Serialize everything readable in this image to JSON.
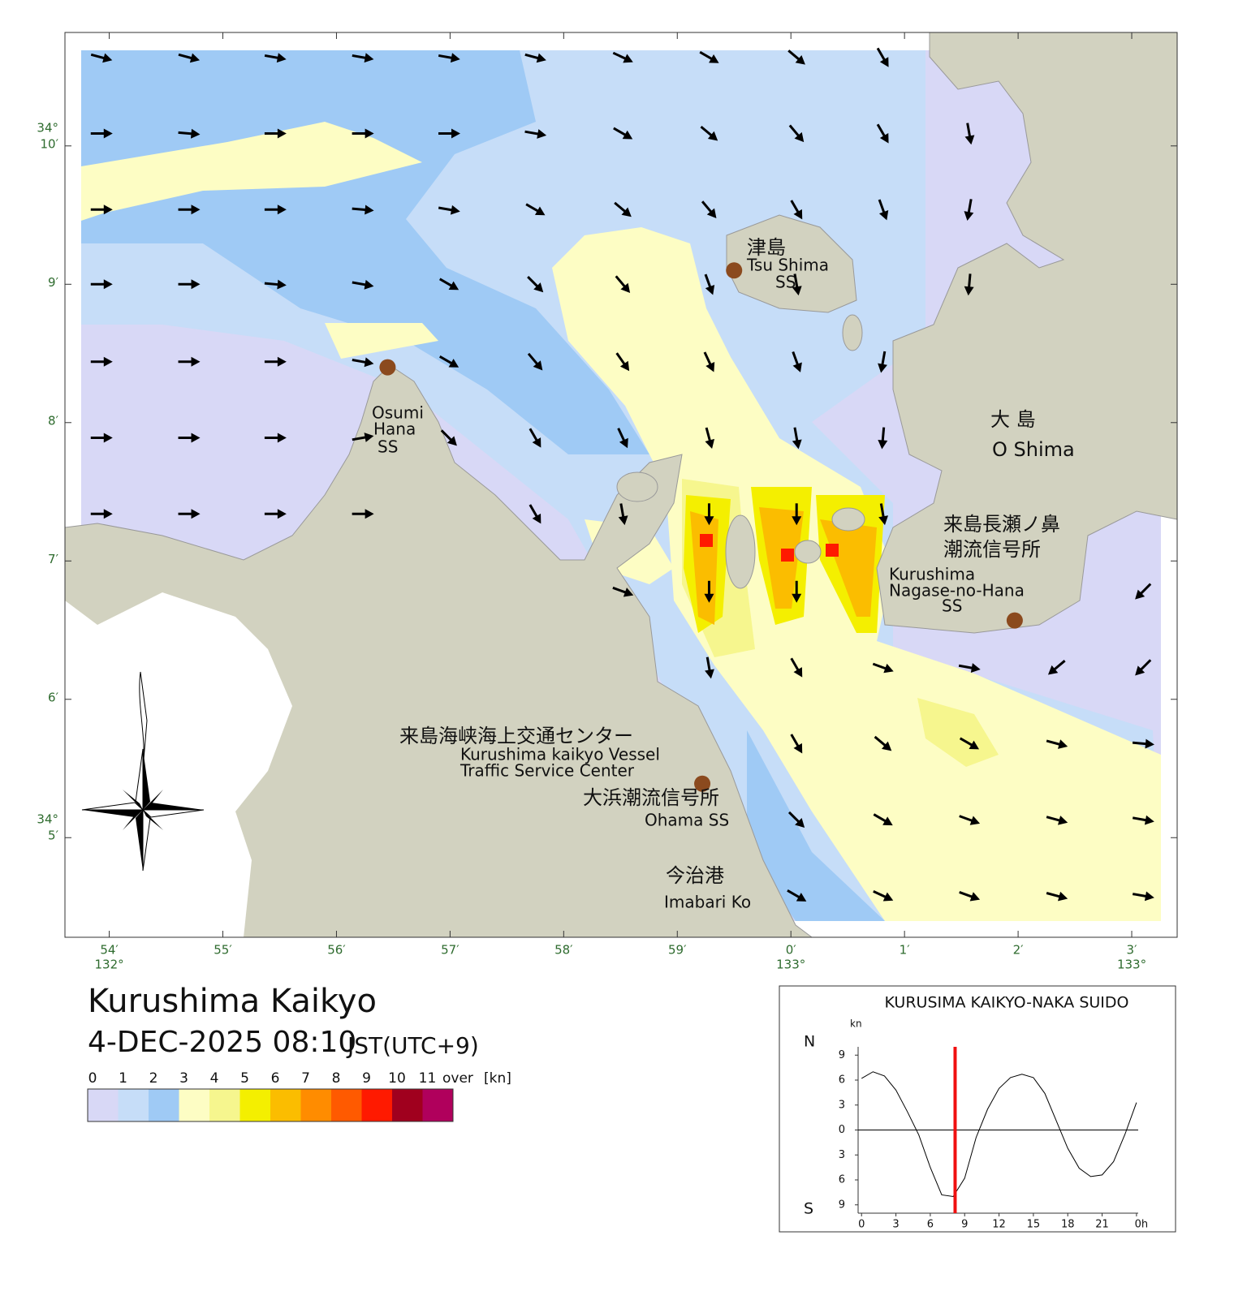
{
  "map": {
    "title": "Kurushima Kaikyo",
    "datetime": "4-DEC-2025 08:10",
    "timezone": "JST(UTC+9)",
    "xlim": [
      53.61,
      63.4
    ],
    "ylim": [
      4.28,
      10.82
    ],
    "lat_ticks": [
      {
        "value": 10,
        "label": "10′",
        "deg": "34°"
      },
      {
        "value": 9,
        "label": "9′"
      },
      {
        "value": 8,
        "label": "8′"
      },
      {
        "value": 7,
        "label": "7′"
      },
      {
        "value": 6,
        "label": "6′"
      },
      {
        "value": 5,
        "label": "5′",
        "deg": "34°"
      }
    ],
    "lon_ticks": [
      {
        "value": 54,
        "label": "54′",
        "deg": "132°"
      },
      {
        "value": 55,
        "label": "55′"
      },
      {
        "value": 56,
        "label": "56′"
      },
      {
        "value": 57,
        "label": "57′"
      },
      {
        "value": 58,
        "label": "58′"
      },
      {
        "value": 59,
        "label": "59′"
      },
      {
        "value": 60,
        "label": "0′",
        "deg": "133°"
      },
      {
        "value": 61,
        "label": "1′"
      },
      {
        "value": 62,
        "label": "2′"
      },
      {
        "value": 63,
        "label": "3′",
        "deg": "133°"
      }
    ],
    "stations": [
      {
        "jp": "津島",
        "en": [
          "Tsu Shima",
          "SS"
        ],
        "lon": 59.5,
        "lat": 9.1
      },
      {
        "en": [
          "Osumi",
          "Hana",
          "SS"
        ],
        "lon": 56.45,
        "lat": 8.4
      },
      {
        "jp": "来島長瀬ノ鼻 潮流信号所",
        "en": [
          "Kurushima",
          "Nagase-no-Hana",
          "SS"
        ],
        "lon": 61.97,
        "lat": 6.57
      },
      {
        "jp": "大浜潮流信号所",
        "en": [
          "Ohama SS"
        ],
        "lon": 59.22,
        "lat": 5.39
      }
    ],
    "places": {
      "oshima_jp": "大 島",
      "oshima_en": "O Shima",
      "imabari_jp": "今治港",
      "imabari_en": "Imabari Ko",
      "center_jp": "来島海峡海上交通センター",
      "center_en": [
        "Kurushima kaikyo Vessel",
        "Traffic Service Center"
      ]
    },
    "arrows": {
      "lon": [
        53.93,
        54.7,
        55.46,
        56.23,
        56.99,
        57.75,
        58.52,
        59.28,
        60.05,
        60.81,
        61.57,
        62.34,
        63.1
      ],
      "lat": [
        10.64,
        10.09,
        9.54,
        9.0,
        8.44,
        7.89,
        7.34,
        6.78,
        6.23,
        5.68,
        5.13,
        4.58
      ],
      "angles": [
        [
          15,
          15,
          10,
          10,
          10,
          15,
          25,
          30,
          40,
          60,
          null,
          null,
          null
        ],
        [
          0,
          5,
          0,
          0,
          0,
          10,
          30,
          40,
          50,
          60,
          80,
          null,
          null
        ],
        [
          0,
          0,
          0,
          5,
          10,
          30,
          40,
          50,
          60,
          70,
          100,
          null,
          null
        ],
        [
          0,
          0,
          5,
          10,
          30,
          45,
          50,
          70,
          80,
          null,
          95,
          null,
          null
        ],
        [
          0,
          0,
          0,
          10,
          30,
          50,
          55,
          65,
          70,
          100,
          null,
          null,
          null
        ],
        [
          0,
          0,
          0,
          -10,
          45,
          60,
          65,
          75,
          80,
          95,
          null,
          null,
          null
        ],
        [
          0,
          0,
          0,
          0,
          null,
          60,
          80,
          90,
          90,
          80,
          null,
          null,
          null
        ],
        [
          null,
          null,
          null,
          null,
          null,
          null,
          20,
          90,
          90,
          null,
          null,
          null,
          135
        ],
        [
          null,
          null,
          null,
          null,
          null,
          null,
          null,
          80,
          60,
          20,
          10,
          140,
          135
        ],
        [
          null,
          null,
          null,
          null,
          null,
          null,
          null,
          null,
          60,
          40,
          30,
          15,
          5
        ],
        [
          null,
          null,
          null,
          null,
          null,
          null,
          null,
          null,
          45,
          30,
          20,
          15,
          10
        ],
        [
          null,
          null,
          null,
          null,
          null,
          null,
          null,
          null,
          30,
          25,
          20,
          15,
          10
        ]
      ]
    },
    "legend": {
      "levels": [
        0,
        1,
        2,
        3,
        4,
        5,
        6,
        7,
        8,
        9,
        10,
        11
      ],
      "over": "over",
      "unit": "[kn]",
      "colors": [
        "#d8d8f6",
        "#c6ddf8",
        "#9fcaf5",
        "#fdfdc4",
        "#f6f68e",
        "#f4ef00",
        "#fbbd00",
        "#ff8c00",
        "#ff5a00",
        "#ff1a00",
        "#a0001e",
        "#b0005c"
      ]
    }
  },
  "tide_chart": {
    "type": "line",
    "title": "KURUSIMA KAIKYO-NAKA SUIDO",
    "y_unit": "kn",
    "north_label": "N",
    "south_label": "S",
    "x": [
      0,
      1,
      2,
      3,
      4,
      5,
      6,
      7,
      8,
      9,
      10,
      11,
      12,
      13,
      14,
      15,
      16,
      17,
      18,
      19,
      20,
      21,
      22,
      23,
      24
    ],
    "values": [
      6.2,
      7.0,
      6.5,
      4.8,
      2.2,
      -0.6,
      -4.5,
      -7.8,
      -8.0,
      -5.8,
      -0.9,
      2.5,
      5.0,
      6.3,
      6.7,
      6.3,
      4.4,
      1.1,
      -2.2,
      -4.6,
      -5.6,
      -5.4,
      -3.8,
      -0.5,
      3.3
    ],
    "current_time": 8.1667,
    "xlim": [
      -0.3,
      24.15
    ],
    "ylim": [
      -10,
      10
    ],
    "xticks": [
      0,
      3,
      6,
      9,
      12,
      15,
      18,
      21,
      {
        "value": 24,
        "label": "0h"
      }
    ],
    "yticks": [
      {
        "value": -9,
        "label": "9"
      },
      {
        "value": -6,
        "label": "6"
      },
      {
        "value": -3,
        "label": "3"
      },
      0,
      3,
      6,
      9
    ]
  }
}
